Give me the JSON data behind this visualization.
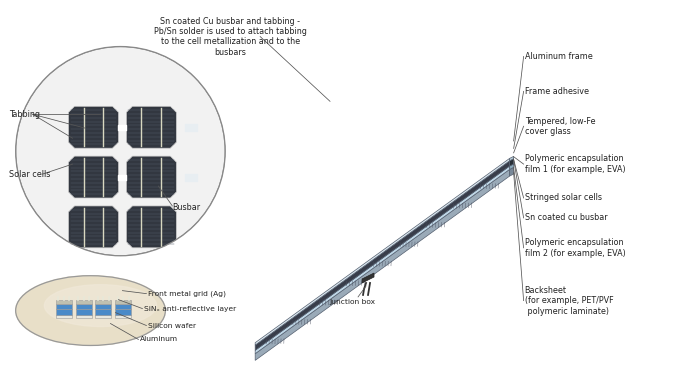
{
  "bg_color": "#ffffff",
  "annotations_right": [
    {
      "label": "Aluminum frame"
    },
    {
      "label": "Frame adhesive"
    },
    {
      "label": "Tempered, low-Fe\ncover glass"
    },
    {
      "label": "Polymeric encapsulation\nfilm 1 (for example, EVA)"
    },
    {
      "label": "Stringed solar cells"
    },
    {
      "label": "Sn coated cu busbar"
    },
    {
      "label": "Polymeric encapsulation\nfilm 2 (for example, EVA)"
    },
    {
      "label": "Backsheet\n(for example, PET/PVF\n polymeric laminate)"
    }
  ],
  "top_annotation": "Sn coated Cu busbar and tabbing -\nPb/Sn solder is used to attach tabbing\nto the cell metallization and to the\nbusbars",
  "junction_box_label": "Junction box",
  "layer_colors": {
    "frame": "#a0b0bc",
    "frame_side": "#788898",
    "frame_top": "#8898a8",
    "glass": "#b8d4e0",
    "glass_top": "#cce4f0",
    "glass_light": "#d8ecf8",
    "eva": "#c0d8e8",
    "eva_top": "#cce0ec",
    "solar_cell": "#383d4a",
    "solar_cell_top": "#2d3240",
    "backsheet": "#9aaab8",
    "backsheet_top": "#a8b8c8",
    "busbar_white": "#dce8f0",
    "cell_stripe": "#484e5e",
    "cell_border": "#d0d8e0"
  },
  "text_color": "#222222",
  "line_color": "#555555"
}
